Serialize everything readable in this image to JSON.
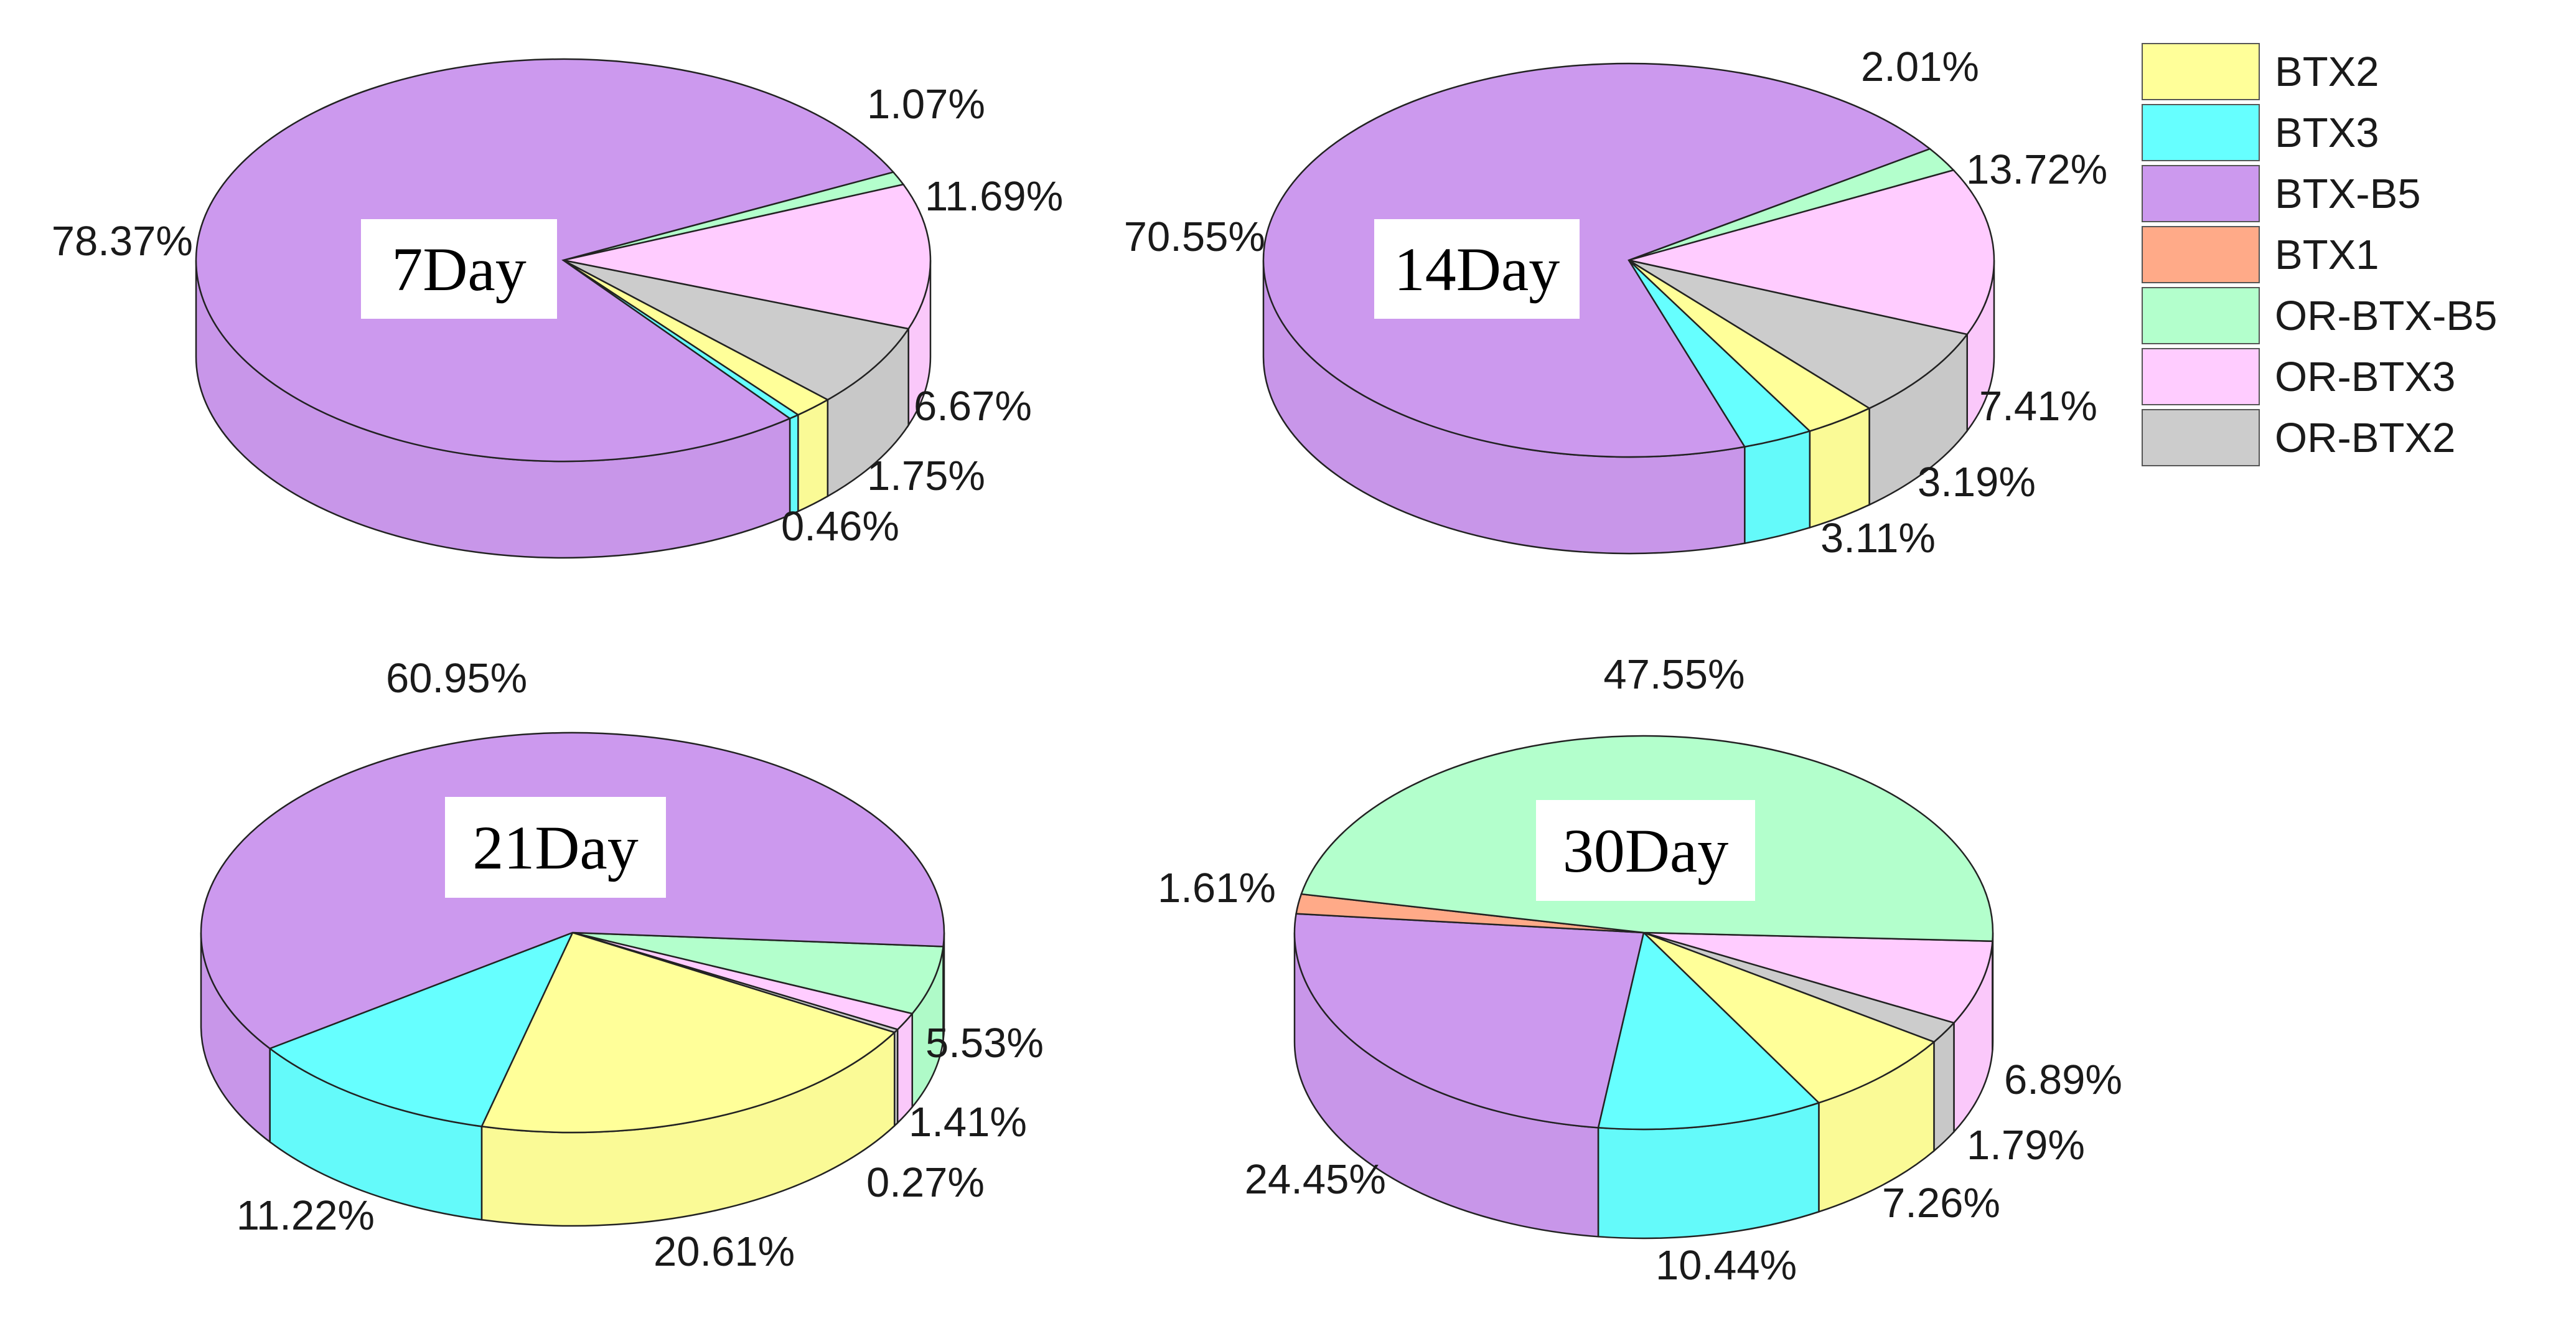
{
  "chart_data": [
    {
      "type": "pie",
      "title": "7Day",
      "slices": [
        {
          "series": "OR-BTX-B5",
          "value": 1.07,
          "label": "1.07%"
        },
        {
          "series": "OR-BTX3",
          "value": 11.69,
          "label": "11.69%"
        },
        {
          "series": "OR-BTX2",
          "value": 6.67,
          "label": "6.67%"
        },
        {
          "series": "BTX2",
          "value": 1.75,
          "label": "1.75%"
        },
        {
          "series": "BTX3",
          "value": 0.46,
          "label": "0.46%"
        },
        {
          "series": "BTX-B5",
          "value": 78.37,
          "label": "78.37%"
        }
      ]
    },
    {
      "type": "pie",
      "title": "14Day",
      "slices": [
        {
          "series": "OR-BTX-B5",
          "value": 2.01,
          "label": "2.01%"
        },
        {
          "series": "OR-BTX3",
          "value": 13.72,
          "label": "13.72%"
        },
        {
          "series": "OR-BTX2",
          "value": 7.41,
          "label": "7.41%"
        },
        {
          "series": "BTX2",
          "value": 3.19,
          "label": "3.19%"
        },
        {
          "series": "BTX3",
          "value": 3.11,
          "label": "3.11%"
        },
        {
          "series": "BTX-B5",
          "value": 70.55,
          "label": "70.55%"
        }
      ]
    },
    {
      "type": "pie",
      "title": "21Day",
      "slices": [
        {
          "series": "OR-BTX-B5",
          "value": 5.53,
          "label": "5.53%"
        },
        {
          "series": "OR-BTX3",
          "value": 1.41,
          "label": "1.41%"
        },
        {
          "series": "OR-BTX2",
          "value": 0.27,
          "label": "0.27%"
        },
        {
          "series": "BTX2",
          "value": 20.61,
          "label": "20.61%"
        },
        {
          "series": "BTX3",
          "value": 11.22,
          "label": "11.22%"
        },
        {
          "series": "BTX-B5",
          "value": 60.95,
          "label": "60.95%"
        }
      ]
    },
    {
      "type": "pie",
      "title": "30Day",
      "slices": [
        {
          "series": "OR-BTX3",
          "value": 6.89,
          "label": "6.89%"
        },
        {
          "series": "OR-BTX2",
          "value": 1.79,
          "label": "1.79%"
        },
        {
          "series": "BTX2",
          "value": 7.26,
          "label": "7.26%"
        },
        {
          "series": "BTX3",
          "value": 10.44,
          "label": "10.44%"
        },
        {
          "series": "BTX-B5",
          "value": 24.45,
          "label": "24.45%"
        },
        {
          "series": "BTX1",
          "value": 1.61,
          "label": "1.61%"
        },
        {
          "series": "OR-BTX-B5",
          "value": 47.55,
          "label": "47.55%"
        }
      ]
    }
  ],
  "legend": {
    "position": "top-right",
    "items": [
      {
        "name": "BTX2",
        "color": "#FFFF99"
      },
      {
        "name": "BTX3",
        "color": "#66FFFF"
      },
      {
        "name": "BTX-B5",
        "color": "#CC99EE"
      },
      {
        "name": "BTX1",
        "color": "#FFAA88"
      },
      {
        "name": "OR-BTX-B5",
        "color": "#B3FFCC"
      },
      {
        "name": "OR-BTX3",
        "color": "#FFCCFF"
      },
      {
        "name": "OR-BTX2",
        "color": "#CCCCCC"
      }
    ]
  }
}
